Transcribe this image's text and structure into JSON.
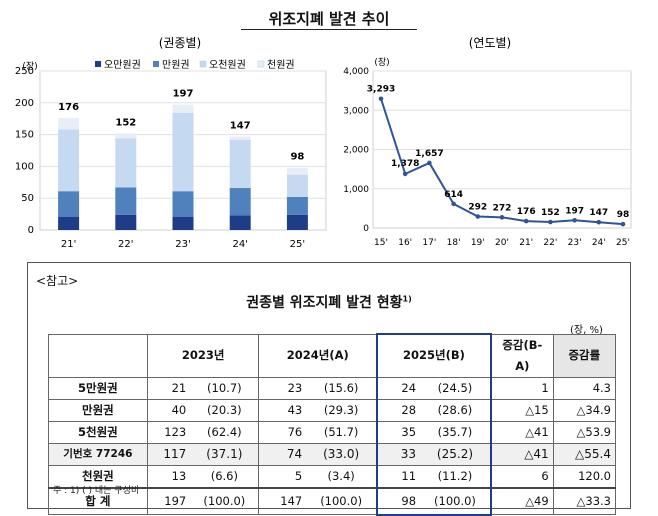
{
  "title": "위조지폐 발견 추이",
  "chart_data": [
    {
      "type": "bar",
      "stacked": true,
      "subtitle": "(권종별)",
      "y_unit": "(장)",
      "categories": [
        "21'",
        "22'",
        "23'",
        "24'",
        "25'"
      ],
      "totals": [
        176,
        152,
        197,
        147,
        98
      ],
      "series": [
        {
          "name": "오만원권",
          "color": "#1f3c88",
          "values": [
            21,
            24,
            21,
            23,
            24
          ]
        },
        {
          "name": "만원권",
          "color": "#4f81bd",
          "values": [
            40,
            43,
            40,
            43,
            28
          ]
        },
        {
          "name": "오천원권",
          "color": "#c5d9f1",
          "values": [
            97,
            77,
            123,
            76,
            35
          ]
        },
        {
          "name": "천원권",
          "color": "#e8eef7",
          "values": [
            18,
            8,
            13,
            5,
            11
          ]
        }
      ],
      "ylim": [
        0,
        250
      ],
      "yticks": [
        0,
        50,
        100,
        150,
        200,
        250
      ],
      "legend": "top"
    },
    {
      "type": "line",
      "subtitle": "(연도별)",
      "y_unit": "(장)",
      "x": [
        "15'",
        "16'",
        "17'",
        "18'",
        "19'",
        "20'",
        "21'",
        "22'",
        "23'",
        "24'",
        "25'"
      ],
      "values": [
        3293,
        1378,
        1657,
        614,
        292,
        272,
        176,
        152,
        197,
        147,
        98
      ],
      "labels": [
        "3,293",
        "1,378",
        "1,657",
        "614",
        "292",
        "272",
        "176",
        "152",
        "197",
        "147",
        "98"
      ],
      "color": "#2f5597",
      "ylim": [
        0,
        4000
      ],
      "yticks": [
        "0",
        "1,000",
        "2,000",
        "3,000",
        "4,000"
      ]
    }
  ],
  "reference": {
    "label": "<참고>",
    "table_title": "권종별 위조지폐 발견 현황",
    "table_title_sup": "1)",
    "unit": "(장, %)",
    "headers": [
      "2023년",
      "2024년(A)",
      "2025년(B)",
      "증감(B-A)",
      "증감률"
    ],
    "rows": [
      {
        "label": "5만원권",
        "y2023": "21",
        "p2023": "(10.7)",
        "y2024": "23",
        "p2024": "(15.6)",
        "y2025": "24",
        "p2025": "(24.5)",
        "diff": "1",
        "rate": "4.3"
      },
      {
        "label": "만원권",
        "y2023": "40",
        "p2023": "(20.3)",
        "y2024": "43",
        "p2024": "(29.3)",
        "y2025": "28",
        "p2025": "(28.6)",
        "diff": "△15",
        "rate": "△34.9"
      },
      {
        "label": "5천원권",
        "y2023": "123",
        "p2023": "(62.4)",
        "y2024": "76",
        "p2024": "(51.7)",
        "y2025": "35",
        "p2025": "(35.7)",
        "diff": "△41",
        "rate": "△53.9"
      },
      {
        "label": "기번호 77246",
        "y2023": "117",
        "p2023": "(37.1)",
        "y2024": "74",
        "p2024": "(33.0)",
        "y2025": "33",
        "p2025": "(25.2)",
        "diff": "△41",
        "rate": "△55.4"
      },
      {
        "label": "천원권",
        "y2023": "13",
        "p2023": "(6.6)",
        "y2024": "5",
        "p2024": "(3.4)",
        "y2025": "11",
        "p2025": "(11.2)",
        "diff": "6",
        "rate": "120.0"
      },
      {
        "label": "합 계",
        "y2023": "197",
        "p2023": "(100.0)",
        "y2024": "147",
        "p2024": "(100.0)",
        "y2025": "98",
        "p2025": "(100.0)",
        "diff": "△49",
        "rate": "△33.3"
      }
    ],
    "footnote": "주 : 1) ( ) 내는 구성비"
  }
}
